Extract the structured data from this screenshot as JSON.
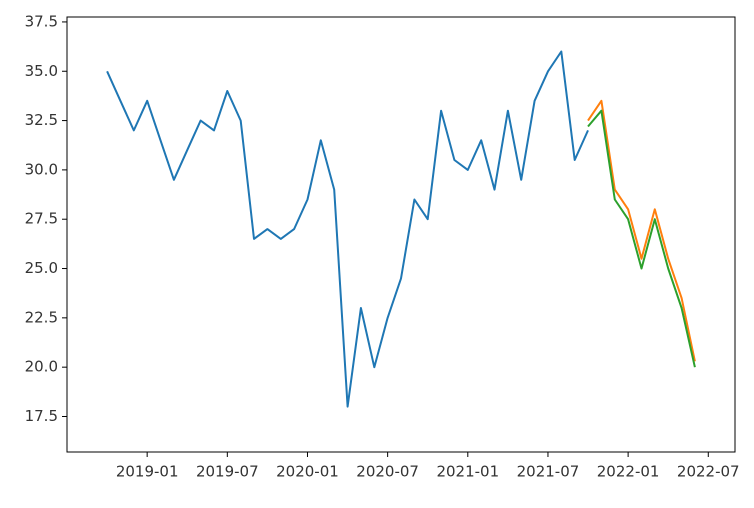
{
  "chart_data": {
    "type": "line",
    "x": [
      "2018-10",
      "2018-11",
      "2018-12",
      "2019-01",
      "2019-02",
      "2019-03",
      "2019-04",
      "2019-05",
      "2019-06",
      "2019-07",
      "2019-08",
      "2019-09",
      "2019-10",
      "2019-11",
      "2019-12",
      "2020-01",
      "2020-02",
      "2020-03",
      "2020-04",
      "2020-05",
      "2020-06",
      "2020-07",
      "2020-08",
      "2020-09",
      "2020-10",
      "2020-11",
      "2020-12",
      "2021-01",
      "2021-02",
      "2021-03",
      "2021-04",
      "2021-05",
      "2021-06",
      "2021-07",
      "2021-08",
      "2021-09",
      "2021-10",
      "2021-11",
      "2021-12",
      "2022-01",
      "2022-02",
      "2022-03",
      "2022-04",
      "2022-05",
      "2022-06"
    ],
    "series": [
      {
        "color": "#1f77b4",
        "values": [
          35.0,
          33.5,
          32.0,
          33.5,
          31.5,
          29.5,
          31.0,
          32.5,
          32.0,
          34.0,
          32.5,
          26.5,
          27.0,
          26.5,
          27.0,
          28.5,
          31.5,
          29.0,
          18.0,
          23.0,
          20.0,
          22.5,
          24.5,
          28.5,
          27.5,
          33.0,
          30.5,
          30.0,
          31.5,
          29.0,
          33.0,
          29.5,
          33.5,
          35.0,
          36.0,
          30.5,
          32.0,
          null,
          null,
          null,
          null,
          null,
          null,
          null,
          null
        ]
      },
      {
        "color": "#ff7f0e",
        "values": [
          null,
          null,
          null,
          null,
          null,
          null,
          null,
          null,
          null,
          null,
          null,
          null,
          null,
          null,
          null,
          null,
          null,
          null,
          null,
          null,
          null,
          null,
          null,
          null,
          null,
          null,
          null,
          null,
          null,
          null,
          null,
          null,
          null,
          null,
          null,
          null,
          32.5,
          33.5,
          29.0,
          28.0,
          25.5,
          28.0,
          25.5,
          23.5,
          20.3
        ]
      },
      {
        "color": "#2ca02c",
        "values": [
          null,
          null,
          null,
          null,
          null,
          null,
          null,
          null,
          null,
          null,
          null,
          null,
          null,
          null,
          null,
          null,
          null,
          null,
          null,
          null,
          null,
          null,
          null,
          null,
          null,
          null,
          null,
          null,
          null,
          null,
          null,
          null,
          null,
          null,
          null,
          null,
          32.2,
          33.0,
          28.5,
          27.5,
          25.0,
          27.5,
          25.0,
          23.0,
          20.0
        ]
      }
    ],
    "xlim": [
      "2018-07",
      "2022-09"
    ],
    "xticks": [
      "2019-01",
      "2019-07",
      "2020-01",
      "2020-07",
      "2021-01",
      "2021-07",
      "2022-01",
      "2022-07"
    ],
    "ylim": [
      15.7,
      37.75
    ],
    "yticks": [
      17.5,
      {
        "value": 20,
        "label": "20.0"
      },
      22.5,
      {
        "value": 25,
        "label": "25.0"
      },
      27.5,
      {
        "value": 30,
        "label": "30.0"
      },
      32.5,
      {
        "value": 35,
        "label": "35.0"
      },
      37.5
    ],
    "grid": false
  }
}
